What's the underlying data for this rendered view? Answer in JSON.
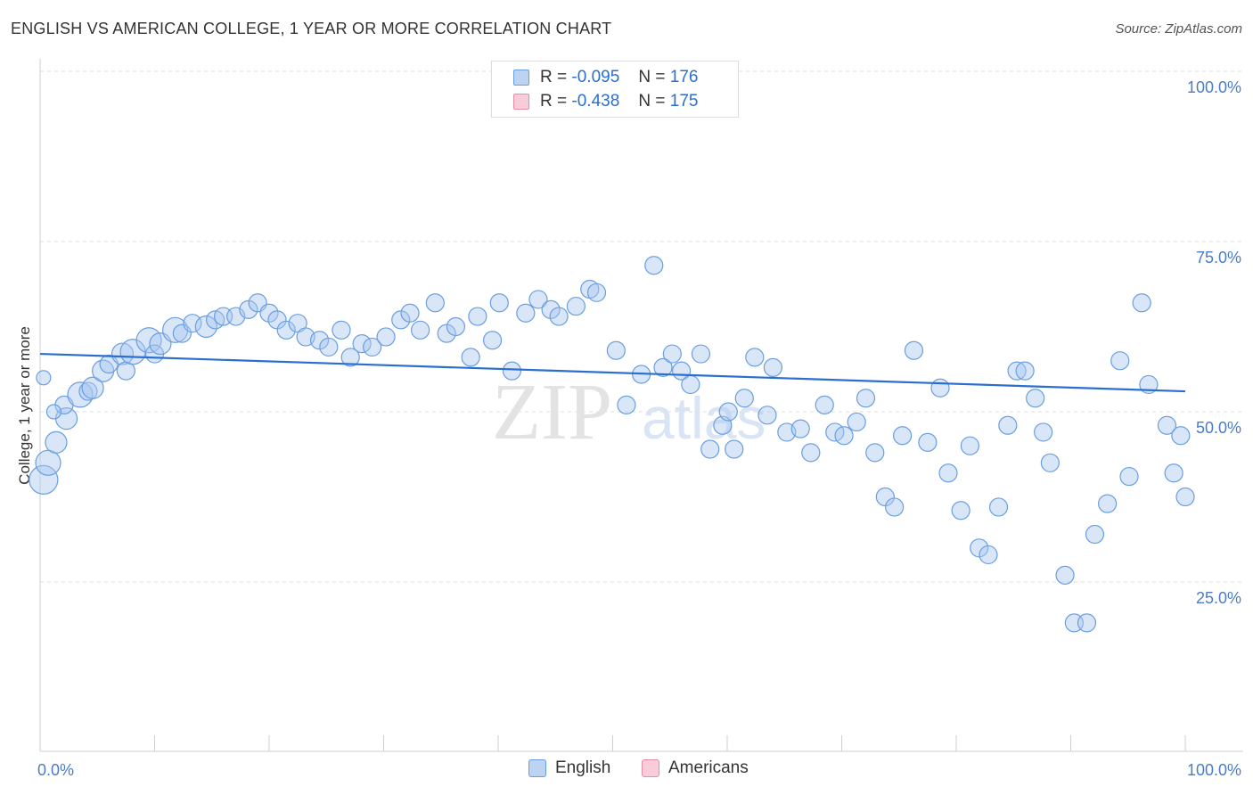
{
  "header": {
    "title": "ENGLISH VS AMERICAN COLLEGE, 1 YEAR OR MORE CORRELATION CHART",
    "source": "Source: ZipAtlas.com"
  },
  "watermark": {
    "text_zip": "ZIP",
    "text_atlas": "atlas"
  },
  "legend": {
    "english": {
      "r_label": "R =",
      "r_value": "-0.095",
      "n_label": "N =",
      "n_value": "176",
      "color": "#a9c8ef"
    },
    "americans": {
      "r_label": "R =",
      "r_value": "-0.438",
      "n_label": "N =",
      "n_value": "175",
      "color": "#f5b8cb"
    }
  },
  "bottom_legend": {
    "english_label": "English",
    "americans_label": "Americans"
  },
  "chart_data": {
    "type": "scatter",
    "title": "ENGLISH VS AMERICAN COLLEGE, 1 YEAR OR MORE CORRELATION CHART",
    "xlabel": "",
    "ylabel": "College, 1 year or more",
    "xlim": [
      0,
      100
    ],
    "ylim": [
      3,
      100
    ],
    "x_tick_labels": [
      "0.0%",
      "100.0%"
    ],
    "y_tick_labels": [
      "100.0%",
      "75.0%",
      "50.0%",
      "25.0%"
    ],
    "y_tick_values": [
      100,
      75,
      50,
      25
    ],
    "colors": {
      "english_fill": "#a9c8ef",
      "english_stroke": "#6a9ee0",
      "english_line": "#2a6fd0",
      "americans_fill": "#f5b8cb",
      "americans_stroke": "#e98aaa",
      "americans_line": "#e0688f"
    },
    "series": [
      {
        "name": "English",
        "trend": {
          "x0": 0,
          "y0": 58.5,
          "x1": 100,
          "y1": 53.0
        },
        "points": [
          [
            0.3,
            40,
            16
          ],
          [
            0.7,
            42.5,
            14
          ],
          [
            1.4,
            45.5,
            12
          ],
          [
            2.3,
            49,
            12
          ],
          [
            2.1,
            51,
            10
          ],
          [
            3.5,
            52.5,
            14
          ],
          [
            4.2,
            53,
            10
          ],
          [
            4.6,
            53.5,
            12
          ],
          [
            5.5,
            56,
            12
          ],
          [
            6,
            57,
            10
          ],
          [
            7.2,
            58.5,
            12
          ],
          [
            7.5,
            56,
            10
          ],
          [
            8.1,
            58.8,
            14
          ],
          [
            9.5,
            60.5,
            14
          ],
          [
            10,
            58.5,
            10
          ],
          [
            10.5,
            60,
            12
          ],
          [
            11.8,
            62,
            14
          ],
          [
            12.4,
            61.5,
            10
          ],
          [
            13.3,
            63,
            10
          ],
          [
            14.5,
            62.5,
            12
          ],
          [
            15.3,
            63.5,
            10
          ],
          [
            16,
            64,
            10
          ],
          [
            17.1,
            64,
            10
          ],
          [
            18.2,
            65,
            10
          ],
          [
            19,
            66,
            10
          ],
          [
            20,
            64.5,
            10
          ],
          [
            20.7,
            63.5,
            10
          ],
          [
            21.5,
            62,
            10
          ],
          [
            22.5,
            63,
            10
          ],
          [
            23.2,
            61,
            10
          ],
          [
            24.4,
            60.5,
            10
          ],
          [
            25.2,
            59.5,
            10
          ],
          [
            26.3,
            62,
            10
          ],
          [
            27.1,
            58,
            10
          ],
          [
            28.1,
            60,
            10
          ],
          [
            29,
            59.5,
            10
          ],
          [
            30.2,
            61,
            10
          ],
          [
            31.5,
            63.5,
            10
          ],
          [
            32.3,
            64.5,
            10
          ],
          [
            33.2,
            62,
            10
          ],
          [
            34.5,
            66,
            10
          ],
          [
            35.5,
            61.5,
            10
          ],
          [
            36.3,
            62.5,
            10
          ],
          [
            37.6,
            58,
            10
          ],
          [
            38.2,
            64,
            10
          ],
          [
            39.5,
            60.5,
            10
          ],
          [
            40.1,
            66,
            10
          ],
          [
            41.2,
            56,
            10
          ],
          [
            42.4,
            64.5,
            10
          ],
          [
            43.5,
            66.5,
            10
          ],
          [
            44.6,
            65,
            10
          ],
          [
            45.3,
            64,
            10
          ],
          [
            46.8,
            65.5,
            10
          ],
          [
            48,
            68,
            10
          ],
          [
            48.6,
            67.5,
            10
          ],
          [
            50.3,
            59,
            10
          ],
          [
            51.2,
            51,
            10
          ],
          [
            52.5,
            55.5,
            10
          ],
          [
            53.6,
            71.5,
            10
          ],
          [
            54.4,
            56.5,
            10
          ],
          [
            55.2,
            58.5,
            10
          ],
          [
            56,
            56,
            10
          ],
          [
            56.8,
            54,
            10
          ],
          [
            57.7,
            58.5,
            10
          ],
          [
            58.5,
            44.5,
            10
          ],
          [
            59.6,
            48,
            10
          ],
          [
            60.1,
            50,
            10
          ],
          [
            60.6,
            44.5,
            10
          ],
          [
            61.5,
            52,
            10
          ],
          [
            62.4,
            58,
            10
          ],
          [
            63.5,
            49.5,
            10
          ],
          [
            64,
            56.5,
            10
          ],
          [
            65.2,
            47,
            10
          ],
          [
            66.4,
            47.5,
            10
          ],
          [
            67.3,
            44,
            10
          ],
          [
            68.5,
            51,
            10
          ],
          [
            69.4,
            47,
            10
          ],
          [
            70.2,
            46.5,
            10
          ],
          [
            71.3,
            48.5,
            10
          ],
          [
            72.1,
            52,
            10
          ],
          [
            72.9,
            44,
            10
          ],
          [
            73.8,
            37.5,
            10
          ],
          [
            74.6,
            36,
            10
          ],
          [
            75.3,
            46.5,
            10
          ],
          [
            76.3,
            59,
            10
          ],
          [
            77.5,
            45.5,
            10
          ],
          [
            78.6,
            53.5,
            10
          ],
          [
            79.3,
            41,
            10
          ],
          [
            80.4,
            35.5,
            10
          ],
          [
            81.2,
            45,
            10
          ],
          [
            82,
            30,
            10
          ],
          [
            82.8,
            29,
            10
          ],
          [
            83.7,
            36,
            10
          ],
          [
            84.5,
            48,
            10
          ],
          [
            85.3,
            56,
            10
          ],
          [
            86,
            56,
            10
          ],
          [
            86.9,
            52,
            10
          ],
          [
            87.6,
            47,
            10
          ],
          [
            88.2,
            42.5,
            10
          ],
          [
            89.5,
            26,
            10
          ],
          [
            90.3,
            19,
            10
          ],
          [
            91.4,
            19,
            10
          ],
          [
            92.1,
            32,
            10
          ],
          [
            93.2,
            36.5,
            10
          ],
          [
            94.3,
            57.5,
            10
          ],
          [
            95.1,
            40.5,
            10
          ],
          [
            96.2,
            66,
            10
          ],
          [
            96.8,
            54,
            10
          ],
          [
            98.4,
            48,
            10
          ],
          [
            99,
            41,
            10
          ],
          [
            99.6,
            46.5,
            10
          ],
          [
            100,
            37.5,
            10
          ],
          [
            0.3,
            55,
            8
          ],
          [
            1.2,
            50,
            8
          ]
        ]
      }
    ]
  }
}
